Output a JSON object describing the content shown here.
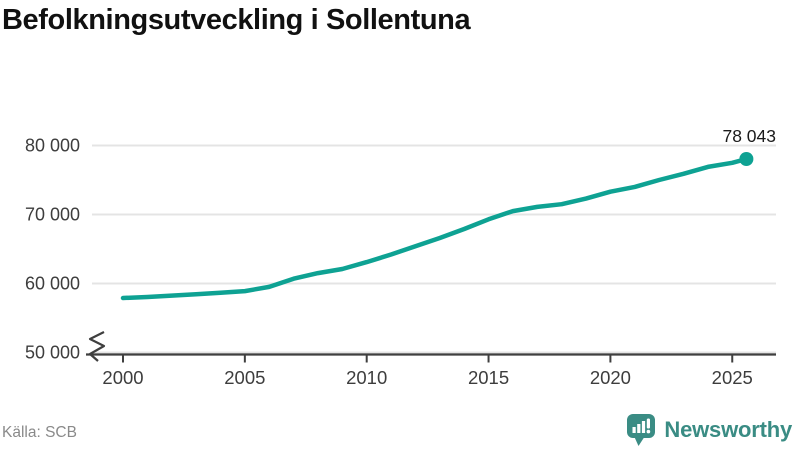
{
  "header": {
    "title": "Befolkningsutveckling i Sollentuna"
  },
  "chart_data": {
    "type": "line",
    "title": "Befolkningsutveckling i Sollentuna",
    "xlabel": "",
    "ylabel": "",
    "grid": "horizontal",
    "legend": "none",
    "axis_break_at_bottom": true,
    "xlim": [
      2000,
      2026.7
    ],
    "ylim": [
      50000,
      83000
    ],
    "x_ticks": [
      {
        "value": 2000,
        "label": "2000"
      },
      {
        "value": 2005,
        "label": "2005"
      },
      {
        "value": 2010,
        "label": "2010"
      },
      {
        "value": 2015,
        "label": "2015"
      },
      {
        "value": 2020,
        "label": "2020"
      },
      {
        "value": 2025,
        "label": "2025"
      }
    ],
    "y_ticks": [
      {
        "value": 50000,
        "label": "50 000"
      },
      {
        "value": 60000,
        "label": "60 000"
      },
      {
        "value": 70000,
        "label": "70 000"
      },
      {
        "value": 80000,
        "label": "80 000"
      }
    ],
    "series": [
      {
        "name": "population",
        "color": "#0ea293",
        "points": [
          [
            2000,
            57900
          ],
          [
            2001,
            58050
          ],
          [
            2002,
            58250
          ],
          [
            2003,
            58450
          ],
          [
            2004,
            58650
          ],
          [
            2005,
            58900
          ],
          [
            2006,
            59500
          ],
          [
            2007,
            60700
          ],
          [
            2008,
            61500
          ],
          [
            2009,
            62100
          ],
          [
            2010,
            63100
          ],
          [
            2011,
            64200
          ],
          [
            2012,
            65400
          ],
          [
            2013,
            66600
          ],
          [
            2014,
            67900
          ],
          [
            2015,
            69300
          ],
          [
            2016,
            70500
          ],
          [
            2017,
            71100
          ],
          [
            2018,
            71500
          ],
          [
            2019,
            72300
          ],
          [
            2020,
            73300
          ],
          [
            2021,
            74000
          ],
          [
            2022,
            75000
          ],
          [
            2023,
            75900
          ],
          [
            2024,
            76900
          ],
          [
            2025,
            77500
          ],
          [
            2025.58,
            78043
          ]
        ]
      }
    ],
    "end_label": {
      "text": "78 043",
      "value": 78043
    }
  },
  "footer": {
    "source": "Källa: SCB",
    "brand": "Newsworthy"
  },
  "colors": {
    "line": "#0ea293",
    "marker": "#0ea293",
    "grid": "#e4e4e4",
    "axis": "#3f3f3f",
    "tick_text": "#3d3d3d",
    "end_label_text": "#1a1a1a",
    "title_text": "#111111",
    "source_text": "#8a8a8a",
    "brand": "#3a8c84"
  },
  "icons": {
    "brand_icon": "newsworthy-speech-bubble-bar-chart"
  }
}
